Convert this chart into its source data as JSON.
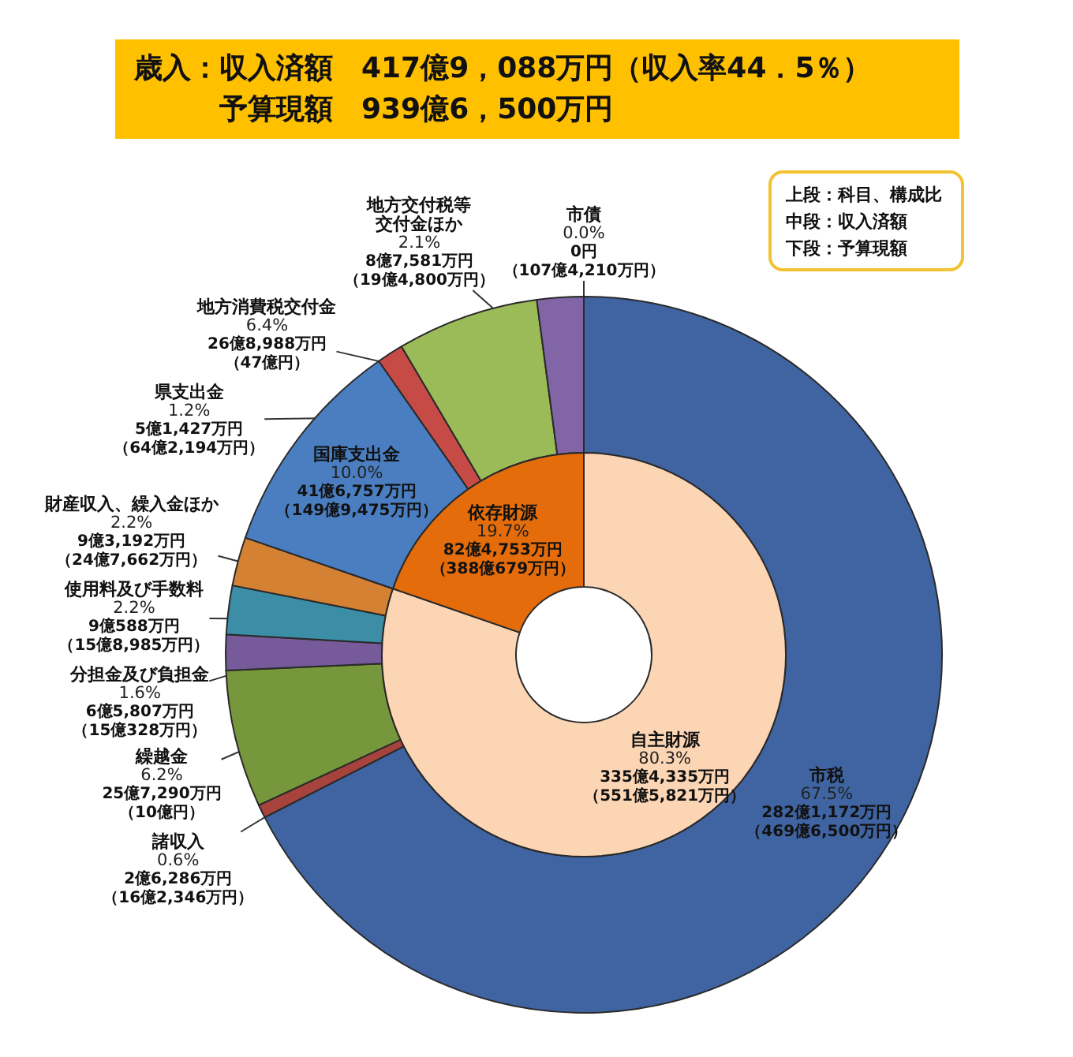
{
  "chart_data": [
    {
      "type": "donut",
      "title": "歳入：収入済額　417億9，088万円（収入率44．5％）",
      "subtitle": "予算現額　939億6，500万円",
      "annotations": [
        "上段：科目、構成比",
        "中段：収入済額",
        "下段：予算現額"
      ],
      "categories": [
        "市税",
        "諸収入",
        "繰越金",
        "分担金及び負担金",
        "使用料及び手数料",
        "財産収入、繰入金ほか",
        "国庫支出金",
        "県支出金",
        "地方消費税交付金",
        "地方交付税等交付金ほか",
        "市債"
      ],
      "values": [
        67.5,
        0.6,
        6.2,
        1.6,
        2.2,
        2.2,
        10.0,
        1.2,
        6.4,
        2.1,
        0.0
      ],
      "colors": [
        "#3f64a1",
        "#a6433d",
        "#76973b",
        "#775a9a",
        "#3c8ea7",
        "#d58134",
        "#4a7ec0",
        "#c64b46",
        "#9bbb59",
        "#8165a6",
        null
      ],
      "value_labels": [
        "67.5%282億1,172万円（469億6,500万円）",
        "0.6%2億6,286万円（16億2,346万円）",
        "6.2%25億7,290万円（10億円）",
        "1.6%6億5,807万円（15億328万円）",
        "2.2%9億588万円（15億8,985万円）",
        "2.2%9億3,192万円（24億7,662万円）",
        "10.0%41億6,757万円（149億9,475万円）",
        "1.2%5億1,427万円（64億2,194万円）",
        "6.4%26億8,988万円（47億円）",
        "2.1%8億7,581万円（19億4,800万円）",
        "0.0%0円（107億4,210万円）"
      ]
    },
    {
      "type": "donut",
      "categories": [
        "自主財源",
        "依存財源"
      ],
      "values": [
        80.3,
        19.7
      ],
      "colors": [
        "#fcd5b4",
        "#e46c0a"
      ],
      "value_labels": [
        "80.3%335億4,335万円（551億5,821万円）",
        "19.7%82億4,753万円（388億679万円）"
      ]
    }
  ]
}
